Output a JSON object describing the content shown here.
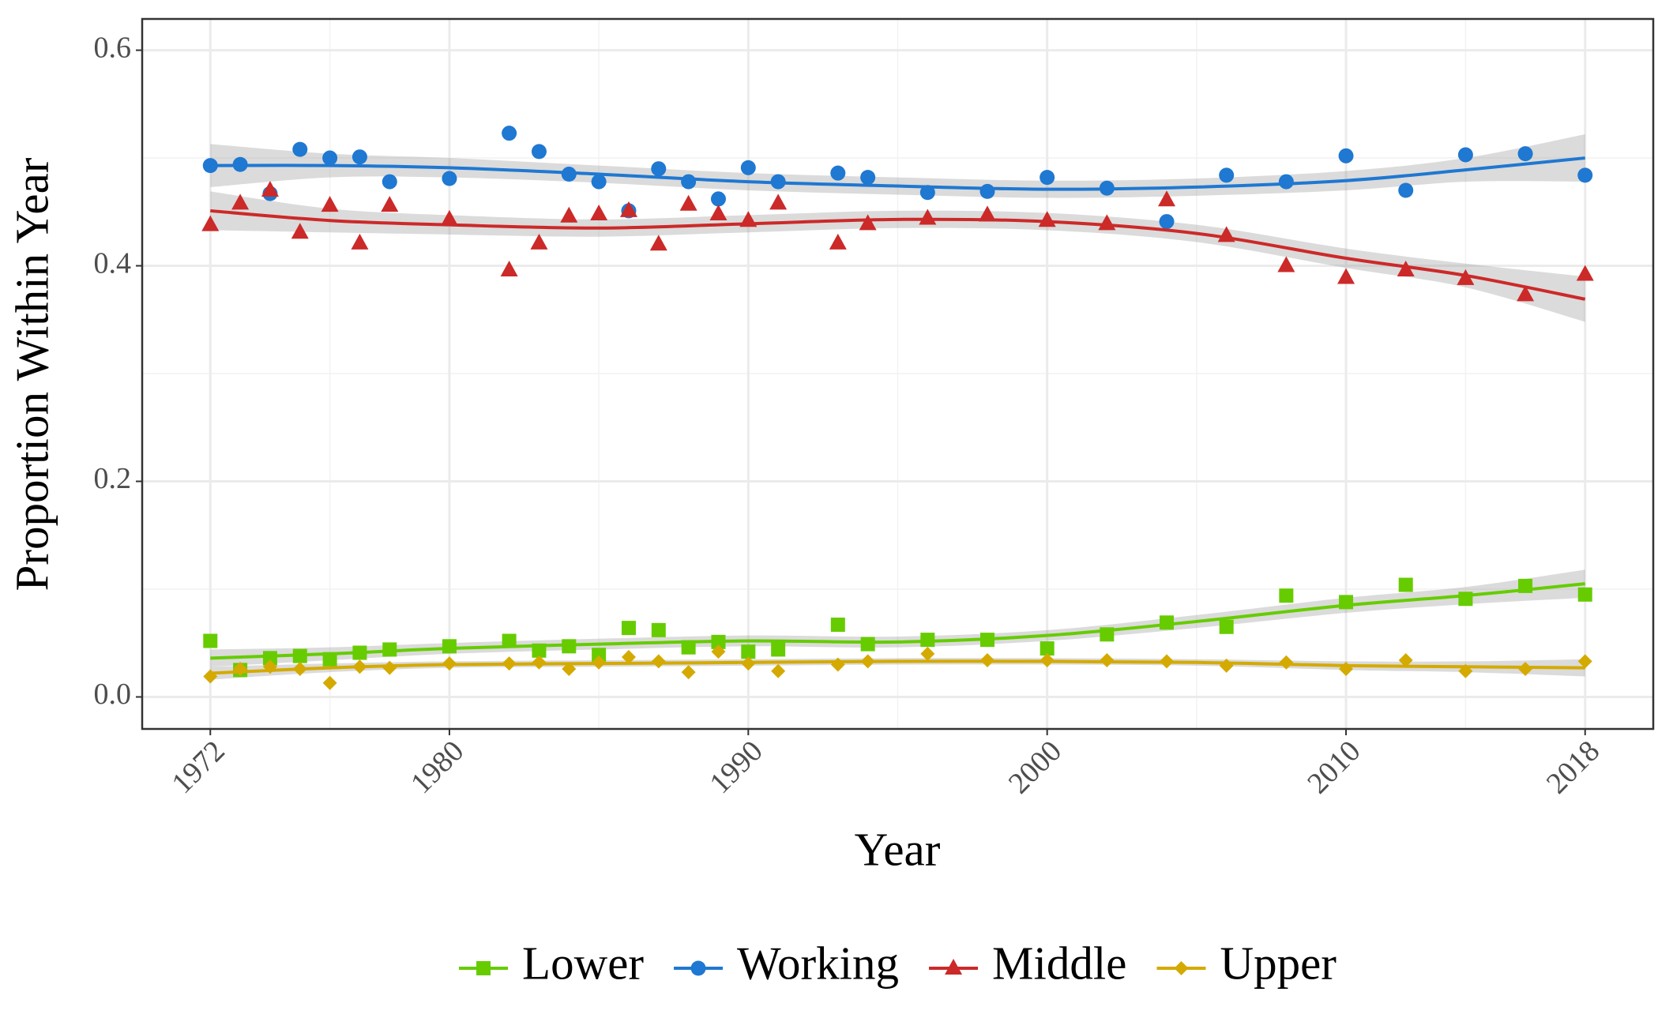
{
  "chart_data": {
    "type": "scatter-smooth",
    "x_label": "Year",
    "y_label": "Proportion Within Year",
    "x": [
      1972,
      1973,
      1974,
      1975,
      1976,
      1977,
      1978,
      1980,
      1982,
      1983,
      1984,
      1985,
      1986,
      1987,
      1988,
      1989,
      1990,
      1991,
      1993,
      1994,
      1996,
      1998,
      2000,
      2002,
      2004,
      2006,
      2008,
      2010,
      2012,
      2014,
      2016,
      2018
    ],
    "trend_x": [
      1972,
      1976,
      1980,
      1985,
      1990,
      1995,
      2000,
      2005,
      2010,
      2014,
      2018
    ],
    "series": [
      {
        "name": "Lower",
        "color": "#66cc00",
        "marker": "square",
        "values": [
          0.052,
          0.025,
          0.036,
          0.038,
          0.035,
          0.041,
          0.044,
          0.047,
          0.052,
          0.043,
          0.047,
          0.039,
          0.064,
          0.062,
          0.046,
          0.051,
          0.042,
          0.044,
          0.067,
          0.049,
          0.053,
          0.053,
          0.045,
          0.058,
          0.069,
          0.065,
          0.094,
          0.088,
          0.104,
          0.091,
          0.103,
          0.095
        ],
        "trend": [
          0.036,
          0.04,
          0.045,
          0.049,
          0.052,
          0.051,
          0.057,
          0.07,
          0.085,
          0.094,
          0.105
        ],
        "band": [
          0.008,
          0.006,
          0.005,
          0.005,
          0.005,
          0.005,
          0.005,
          0.006,
          0.007,
          0.008,
          0.013
        ]
      },
      {
        "name": "Working",
        "color": "#1f78d1",
        "marker": "circle",
        "values": [
          0.493,
          0.494,
          0.467,
          0.508,
          0.5,
          0.501,
          0.478,
          0.481,
          0.523,
          0.506,
          0.485,
          0.478,
          0.451,
          0.49,
          0.478,
          0.462,
          0.491,
          0.478,
          0.486,
          0.482,
          0.468,
          0.469,
          0.482,
          0.472,
          0.441,
          0.484,
          0.478,
          0.502,
          0.47,
          0.503,
          0.504,
          0.484
        ],
        "trend": [
          0.493,
          0.493,
          0.491,
          0.485,
          0.478,
          0.474,
          0.471,
          0.473,
          0.479,
          0.489,
          0.5
        ],
        "band": [
          0.02,
          0.011,
          0.009,
          0.008,
          0.008,
          0.008,
          0.008,
          0.008,
          0.009,
          0.011,
          0.022
        ]
      },
      {
        "name": "Middle",
        "color": "#cc2929",
        "marker": "triangle",
        "values": [
          0.438,
          0.458,
          0.47,
          0.431,
          0.456,
          0.421,
          0.456,
          0.443,
          0.396,
          0.421,
          0.446,
          0.448,
          0.451,
          0.42,
          0.457,
          0.448,
          0.442,
          0.458,
          0.421,
          0.439,
          0.444,
          0.447,
          0.442,
          0.439,
          0.461,
          0.428,
          0.4,
          0.389,
          0.396,
          0.388,
          0.373,
          0.392
        ],
        "trend": [
          0.451,
          0.442,
          0.438,
          0.435,
          0.439,
          0.443,
          0.441,
          0.43,
          0.407,
          0.391,
          0.369
        ],
        "band": [
          0.018,
          0.011,
          0.009,
          0.008,
          0.008,
          0.008,
          0.008,
          0.008,
          0.009,
          0.011,
          0.021
        ]
      },
      {
        "name": "Upper",
        "color": "#d4aa00",
        "marker": "diamond",
        "values": [
          0.019,
          0.026,
          0.028,
          0.026,
          0.013,
          0.028,
          0.027,
          0.031,
          0.031,
          0.032,
          0.026,
          0.032,
          0.037,
          0.033,
          0.023,
          0.042,
          0.031,
          0.024,
          0.03,
          0.033,
          0.04,
          0.034,
          0.034,
          0.034,
          0.033,
          0.029,
          0.032,
          0.026,
          0.034,
          0.024,
          0.026,
          0.033
        ],
        "trend": [
          0.022,
          0.027,
          0.03,
          0.031,
          0.032,
          0.033,
          0.033,
          0.032,
          0.029,
          0.028,
          0.027
        ],
        "band": [
          0.006,
          0.004,
          0.003,
          0.003,
          0.003,
          0.003,
          0.003,
          0.003,
          0.004,
          0.005,
          0.008
        ]
      }
    ],
    "xlim": [
      1969.72,
      2020.28
    ],
    "xticks": [
      1972,
      1980,
      1990,
      2000,
      2010,
      2018
    ],
    "xminor": [
      1976,
      1985,
      1995,
      2005,
      2014
    ],
    "ylim": [
      -0.0297,
      0.629
    ],
    "yticks": [
      {
        "value": 0,
        "label": "0.0"
      },
      0.2,
      0.4,
      0.6
    ],
    "yminor": [
      0.1,
      0.3,
      0.5
    ],
    "grid": true,
    "legend": "bottom"
  }
}
